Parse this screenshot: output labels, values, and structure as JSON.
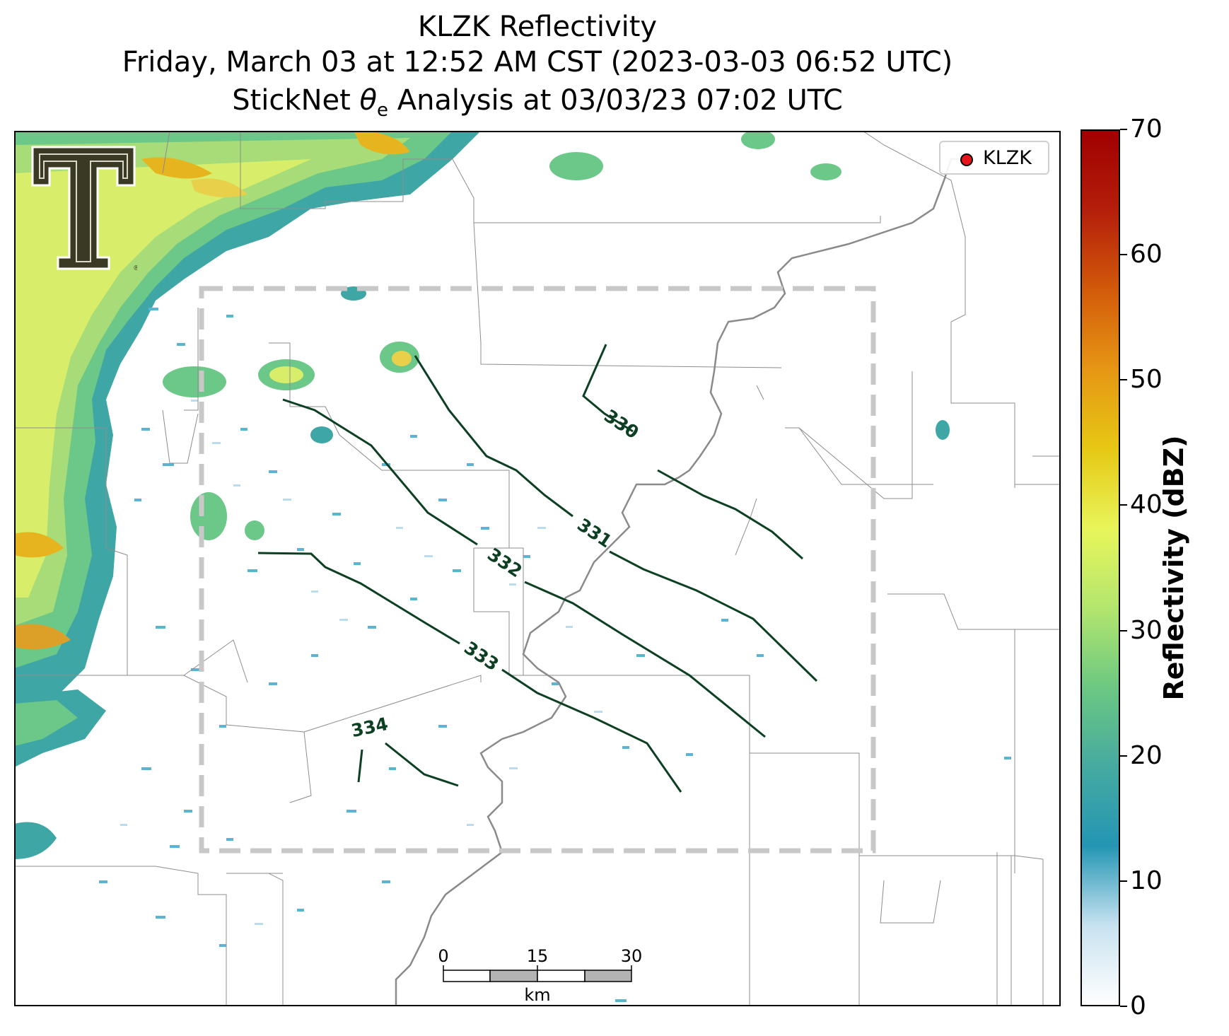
{
  "title": {
    "line1": "KLZK Reflectivity",
    "line2": "Friday, March 03 at 12:52 AM CST (2023-03-03 06:52 UTC)",
    "line3_prefix": "StickNet ",
    "line3_symbol": "θ",
    "line3_sub": "e",
    "line3_suffix": " Analysis at 03/03/23 07:02 UTC"
  },
  "legend": {
    "marker_color": "#e8141c",
    "label": "KLZK"
  },
  "logo": {
    "icon": "texas-tech-double-t-logo",
    "color": "#3a3a24"
  },
  "colorbar": {
    "label": "Reflectivity (dBZ)",
    "min": 0,
    "max": 70,
    "ticks": [
      "0",
      "10",
      "20",
      "30",
      "40",
      "50",
      "60",
      "70"
    ],
    "colors": [
      "#ffffff",
      "#c8e2f0",
      "#2496b4",
      "#46aaa0",
      "#6cc882",
      "#b4e66e",
      "#e8f55a",
      "#e6c814",
      "#e69614",
      "#d25a0a",
      "#b41e0a",
      "#a00000"
    ]
  },
  "contours": {
    "color": "#0d4022",
    "labels": [
      "330",
      "331",
      "332",
      "333",
      "334"
    ]
  },
  "scalebar": {
    "unit": "km",
    "ticks": [
      "0",
      "15",
      "30"
    ]
  },
  "analysis_box": {
    "color": "#c8c8c8",
    "style": "dashed"
  }
}
